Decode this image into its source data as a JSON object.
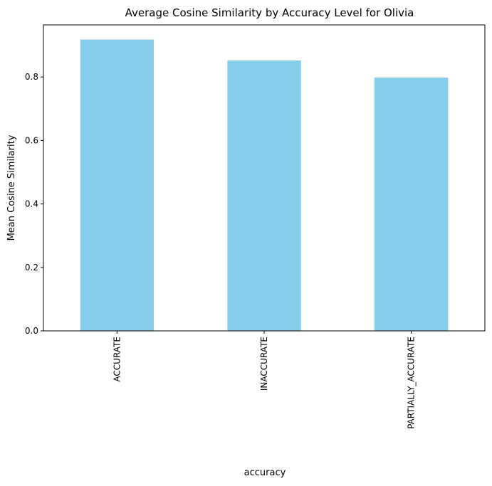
{
  "chart_data": {
    "type": "bar",
    "title": "Average Cosine Similarity by Accuracy Level for Olivia",
    "xlabel": "accuracy",
    "ylabel": "Mean Cosine Similarity",
    "categories": [
      "ACCURATE",
      "INACCURATE",
      "PARTIALLY_ACCURATE"
    ],
    "values": [
      0.918,
      0.852,
      0.798
    ],
    "ylim": [
      0,
      0.964
    ],
    "yticks": [
      0.0,
      0.2,
      0.4,
      0.6,
      0.8
    ],
    "ytick_labels": [
      "0.0",
      "0.2",
      "0.4",
      "0.6",
      "0.8"
    ],
    "bar_color": "#87CEEB",
    "grid": false,
    "legend": "none"
  }
}
